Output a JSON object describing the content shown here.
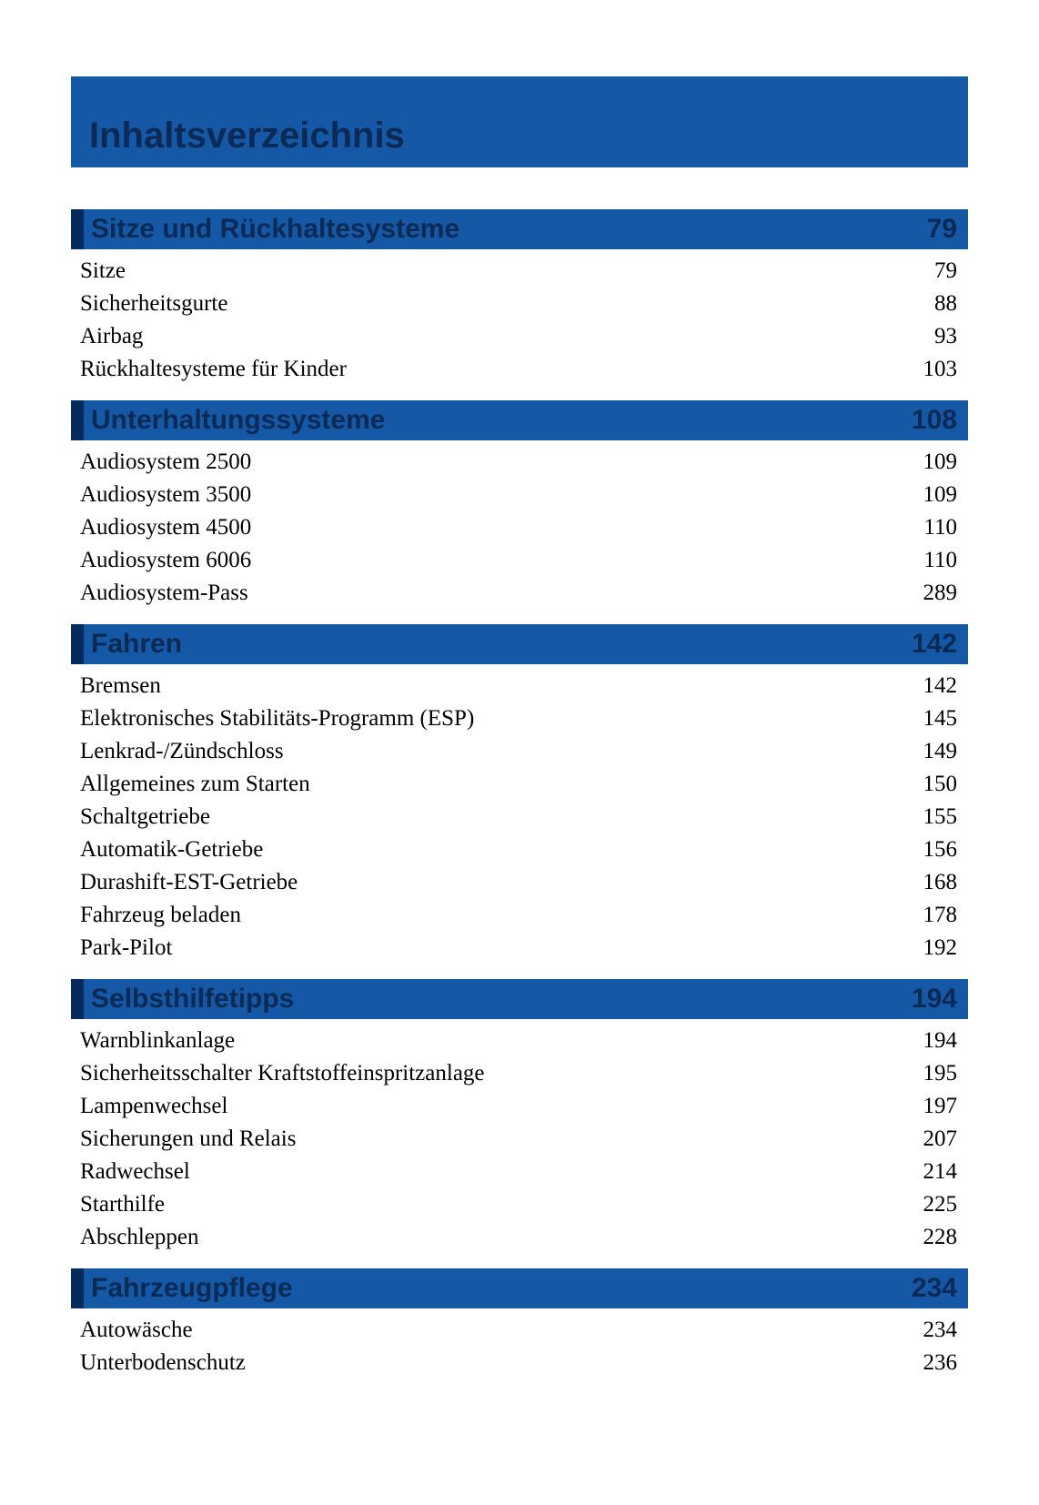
{
  "title": "Inhaltsverzeichnis",
  "colors": {
    "header_bg": "#1558a5",
    "header_accent": "#052a5c",
    "header_text": "#0b2a55",
    "entry_text": "#000000",
    "page_bg": "#ffffff"
  },
  "typography": {
    "title_fontsize_pt": 30,
    "section_label_fontsize_pt": 22,
    "entry_fontsize_pt": 19,
    "header_font": "Arial",
    "entry_font": "Times New Roman"
  },
  "sections": [
    {
      "label": "Sitze und Rückhaltesysteme",
      "page": "79",
      "entries": [
        {
          "label": "Sitze",
          "page": "79"
        },
        {
          "label": "Sicherheitsgurte",
          "page": "88"
        },
        {
          "label": "Airbag",
          "page": "93"
        },
        {
          "label": "Rückhaltesysteme für Kinder",
          "page": "103"
        }
      ]
    },
    {
      "label": "Unterhaltungssysteme",
      "page": "108",
      "entries": [
        {
          "label": "Audiosystem 2500",
          "page": "109"
        },
        {
          "label": "Audiosystem 3500",
          "page": "109"
        },
        {
          "label": "Audiosystem 4500",
          "page": "110"
        },
        {
          "label": "Audiosystem 6006",
          "page": "110"
        },
        {
          "label": "Audiosystem-Pass",
          "page": "289"
        }
      ]
    },
    {
      "label": "Fahren",
      "page": "142",
      "entries": [
        {
          "label": "Bremsen",
          "page": "142"
        },
        {
          "label": "Elektronisches Stabilitäts-Programm (ESP)",
          "page": "145"
        },
        {
          "label": "Lenkrad-/Zündschloss",
          "page": "149"
        },
        {
          "label": "Allgemeines zum Starten",
          "page": "150"
        },
        {
          "label": "Schaltgetriebe",
          "page": "155"
        },
        {
          "label": "Automatik-Getriebe",
          "page": "156"
        },
        {
          "label": "Durashift-EST-Getriebe",
          "page": "168"
        },
        {
          "label": "Fahrzeug beladen",
          "page": "178"
        },
        {
          "label": "Park-Pilot",
          "page": "192"
        }
      ]
    },
    {
      "label": "Selbsthilfetipps",
      "page": "194",
      "entries": [
        {
          "label": "Warnblinkanlage",
          "page": "194"
        },
        {
          "label": "Sicherheitsschalter Kraftstoffeinspritzanlage",
          "page": "195"
        },
        {
          "label": "Lampenwechsel",
          "page": "197"
        },
        {
          "label": "Sicherungen und Relais",
          "page": "207"
        },
        {
          "label": "Radwechsel",
          "page": "214"
        },
        {
          "label": "Starthilfe",
          "page": "225"
        },
        {
          "label": "Abschleppen",
          "page": "228"
        }
      ]
    },
    {
      "label": "Fahrzeugpflege",
      "page": "234",
      "entries": [
        {
          "label": "Autowäsche",
          "page": "234"
        },
        {
          "label": "Unterbodenschutz",
          "page": "236"
        }
      ]
    }
  ]
}
